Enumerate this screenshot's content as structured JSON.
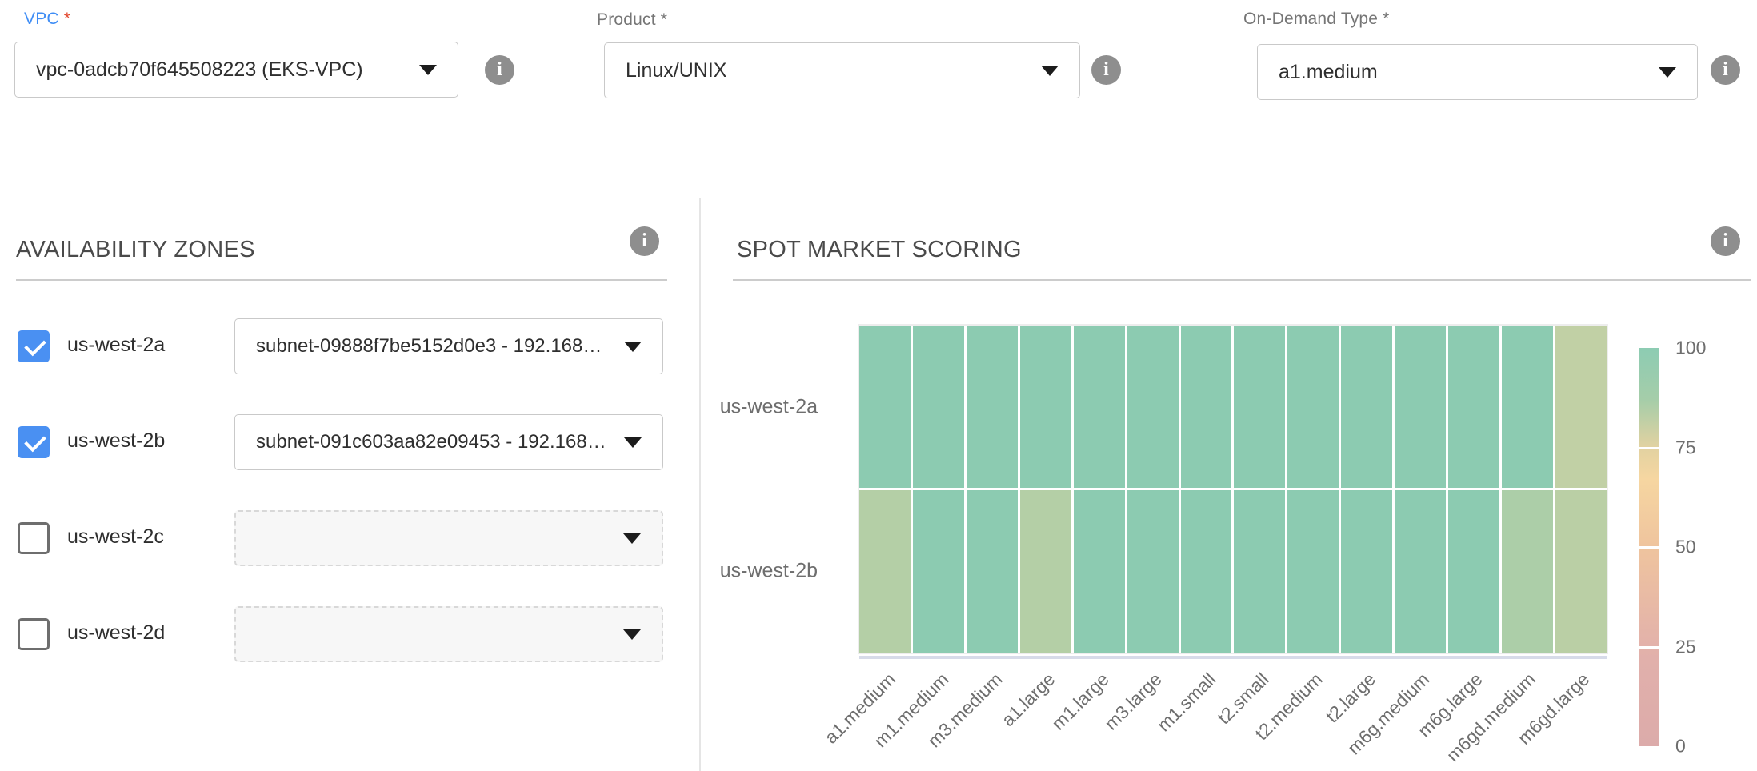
{
  "form": {
    "vpc": {
      "label": "VPC",
      "required_marker": "*",
      "value": "vpc-0adcb70f645508223 (EKS-VPC)"
    },
    "product": {
      "label": "Product",
      "required_marker": "*",
      "value": "Linux/UNIX"
    },
    "on_demand_type": {
      "label": "On-Demand Type",
      "required_marker": "*",
      "value": "a1.medium"
    }
  },
  "availability_zones": {
    "title": "AVAILABILITY ZONES",
    "rows": [
      {
        "zone": "us-west-2a",
        "checked": true,
        "subnet": "subnet-09888f7be5152d0e3 - 192.168…"
      },
      {
        "zone": "us-west-2b",
        "checked": true,
        "subnet": "subnet-091c603aa82e09453 - 192.168…"
      },
      {
        "zone": "us-west-2c",
        "checked": false,
        "subnet": ""
      },
      {
        "zone": "us-west-2d",
        "checked": false,
        "subnet": ""
      }
    ]
  },
  "spot_market_scoring": {
    "title": "SPOT MARKET SCORING"
  },
  "chart_data": {
    "type": "heatmap",
    "title": "SPOT MARKET SCORING",
    "x_categories": [
      "a1.medium",
      "m1.medium",
      "m3.medium",
      "a1.large",
      "m1.large",
      "m3.large",
      "m1.small",
      "t2.small",
      "t2.medium",
      "t2.large",
      "m6g.medium",
      "m6g.large",
      "m6gd.medium",
      "m6gd.large"
    ],
    "y_categories": [
      "us-west-2a",
      "us-west-2b"
    ],
    "series": [
      {
        "name": "us-west-2a",
        "values": [
          95,
          95,
          95,
          95,
          95,
          95,
          95,
          95,
          95,
          95,
          95,
          95,
          95,
          80
        ]
      },
      {
        "name": "us-west-2b",
        "values": [
          82,
          95,
          95,
          82,
          95,
          95,
          95,
          95,
          95,
          95,
          95,
          95,
          84,
          81
        ]
      }
    ],
    "value_range": [
      0,
      100
    ],
    "colorbar_ticks": [
      100,
      75,
      50,
      25,
      0
    ],
    "color_scale_stops": [
      [
        100,
        [
          141,
          204,
          179
        ]
      ],
      [
        92,
        [
          140,
          202,
          176
        ]
      ],
      [
        82,
        [
          180,
          207,
          166
        ]
      ],
      [
        75,
        [
          225,
          210,
          161
        ]
      ],
      [
        60,
        [
          247,
          214,
          160
        ]
      ],
      [
        50,
        [
          240,
          197,
          158
        ]
      ],
      [
        25,
        [
          225,
          177,
          171
        ]
      ],
      [
        0,
        [
          220,
          171,
          170
        ]
      ]
    ],
    "colorbar_gradient": [
      [
        "0%",
        "#8dccb3"
      ],
      [
        "13%",
        "#a5cda9"
      ],
      [
        "25%",
        "#e2d2a1"
      ],
      [
        "33%",
        "#f6d6a1"
      ],
      [
        "50%",
        "#efc49e"
      ],
      [
        "70%",
        "#e5b5a8"
      ],
      [
        "78%",
        "#e1b0ab"
      ],
      [
        "100%",
        "#dcabaa"
      ]
    ],
    "legend_position": "right",
    "grid": false
  },
  "icons": {
    "info": "i"
  },
  "colors": {
    "checkbox_blue": "#4a90f2",
    "focused_label_blue": "#3f8df5",
    "required_red": "#e2482f",
    "label_gray": "#767676",
    "heatmap_green": "#8ccab1",
    "heatmap_light_green": "#b5cfa7"
  }
}
